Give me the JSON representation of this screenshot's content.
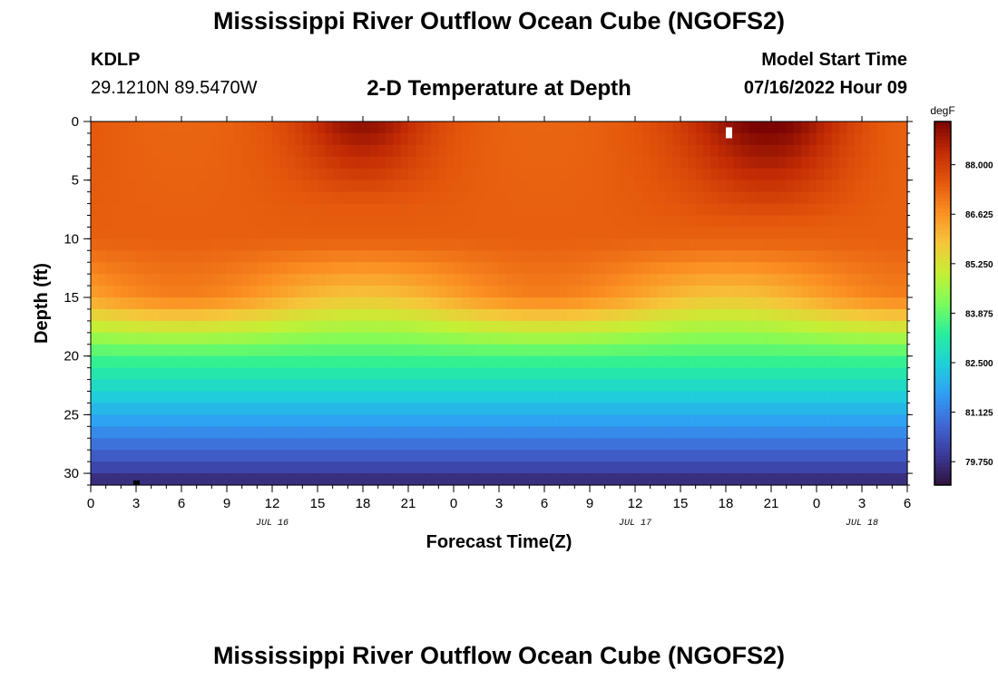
{
  "header": {
    "title": "Mississippi River Outflow Ocean Cube (NGOFS2)",
    "station_id": "KDLP",
    "station_location": "29.1210N  89.5470W",
    "plot_title": "2-D Temperature at Depth",
    "model_start_label": "Model Start Time",
    "model_start_value": "07/16/2022 Hour 09"
  },
  "footer": {
    "title": "Mississippi River Outflow Ocean Cube (NGOFS2)"
  },
  "chart_data": {
    "type": "heatmap",
    "xlabel": "Forecast Time(Z)",
    "ylabel": "Depth (ft)",
    "x_ticks": [
      "0",
      "3",
      "6",
      "9",
      "12",
      "15",
      "18",
      "21",
      "0",
      "3",
      "6",
      "9",
      "12",
      "15",
      "18",
      "21",
      "0",
      "3",
      "6"
    ],
    "x_range_hours": [
      0,
      54
    ],
    "date_labels": [
      {
        "label": "JUL 16",
        "hour": 12
      },
      {
        "label": "JUL 17",
        "hour": 36
      },
      {
        "label": "JUL 18",
        "hour": 51
      }
    ],
    "y_ticks": [
      "0",
      "5",
      "10",
      "15",
      "20",
      "25",
      "30"
    ],
    "y_range_ft": [
      0,
      31
    ],
    "y_inverted": true,
    "colorbar": {
      "unit": "degF",
      "labels": [
        "88.000",
        "86.625",
        "85.250",
        "83.875",
        "82.500",
        "81.125",
        "79.750"
      ],
      "label_values": [
        88.0,
        86.625,
        85.25,
        83.875,
        82.5,
        81.125,
        79.75
      ],
      "range": [
        79.1,
        89.2
      ],
      "colors": [
        "#30123b",
        "#3b3a9a",
        "#4167d5",
        "#2f9ef5",
        "#1ed0d9",
        "#27ee9c",
        "#7cfd5a",
        "#c6ef34",
        "#f6c53a",
        "#fb8f22",
        "#e4570c",
        "#c22b04",
        "#7a0403"
      ]
    },
    "depth_ft": [
      0,
      1,
      2,
      3,
      4,
      5,
      6,
      7,
      8,
      9,
      10,
      11,
      12,
      13,
      14,
      15,
      16,
      17,
      18,
      19,
      20,
      21,
      22,
      23,
      24,
      25,
      26,
      27,
      28,
      29,
      30,
      31
    ],
    "temperature_profile_degF": {
      "surface_peak_hour_18": 88.6,
      "surface_peak_hour_45": 89.0,
      "surface_trough": 87.3,
      "depth_10ft": 87.4,
      "depth_15ft_warm": 86.9,
      "depth_15ft_cool": 85.8,
      "depth_20ft": 83.6,
      "depth_25ft": 81.9,
      "depth_30ft": 80.0,
      "bottom": 79.4
    }
  }
}
